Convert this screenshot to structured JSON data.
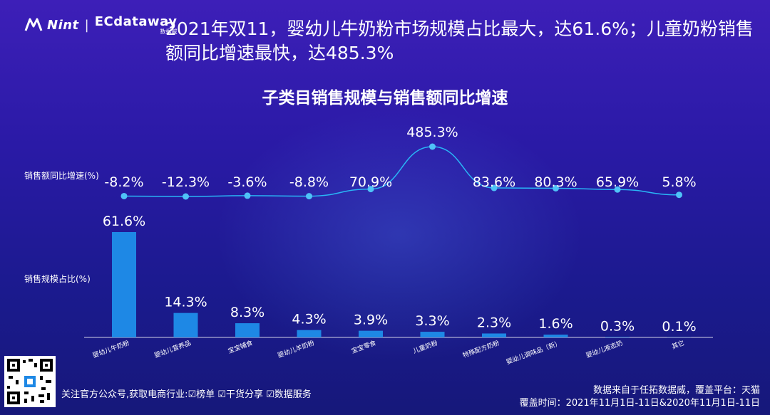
{
  "header": {
    "logo_nint": "Nint",
    "logo_ec": "ECdataway",
    "logo_ec_sub": "数据威",
    "headline": "2021年双11，婴幼儿牛奶粉市场规模占比最大，达61.6%；儿童奶粉销售额同比增速最快，达485.3%"
  },
  "labels": {
    "growth_axis": "销售额同比增速(%)",
    "share_axis": "销售规模占比(%)"
  },
  "footer": {
    "follow_text": "关注官方公众号,获取电商行业:☑榜单 ☑干货分享 ☑数据服务",
    "source": "数据来自于任拓数据威，覆盖平台：天猫",
    "period": "覆盖时间：2021年11月1日-11日&2020年11月1日-11日"
  },
  "colors": {
    "bar": "#1e88e5",
    "line": "#29b6f6",
    "marker": "#4fc3f7"
  },
  "chart_data": {
    "type": "bar",
    "title": "子类目销售规模与销售额同比增速",
    "categories": [
      "婴幼儿牛奶粉",
      "婴幼儿营养品",
      "宝宝辅食",
      "婴幼儿羊奶粉",
      "宝宝零食",
      "儿童奶粉",
      "特殊配方奶粉",
      "婴幼儿调味品（新）",
      "婴幼儿液态奶",
      "其它"
    ],
    "series": [
      {
        "name": "销售规模占比(%)",
        "type": "bar",
        "values": [
          61.6,
          14.3,
          8.3,
          4.3,
          3.9,
          3.3,
          2.3,
          1.6,
          0.3,
          0.1
        ],
        "labels": [
          "61.6%",
          "14.3%",
          "8.3%",
          "4.3%",
          "3.9%",
          "3.3%",
          "2.3%",
          "1.6%",
          "0.3%",
          "0.1%"
        ]
      },
      {
        "name": "销售额同比增速(%)",
        "type": "line",
        "values": [
          -8.2,
          -12.3,
          -3.6,
          -8.8,
          70.9,
          485.3,
          83.6,
          80.3,
          65.9,
          5.8
        ],
        "labels": [
          "-8.2%",
          "-12.3%",
          "-3.6%",
          "-8.8%",
          "70.9%",
          "485.3%",
          "83.6%",
          "80.3%",
          "65.9%",
          "5.8%"
        ]
      }
    ]
  }
}
